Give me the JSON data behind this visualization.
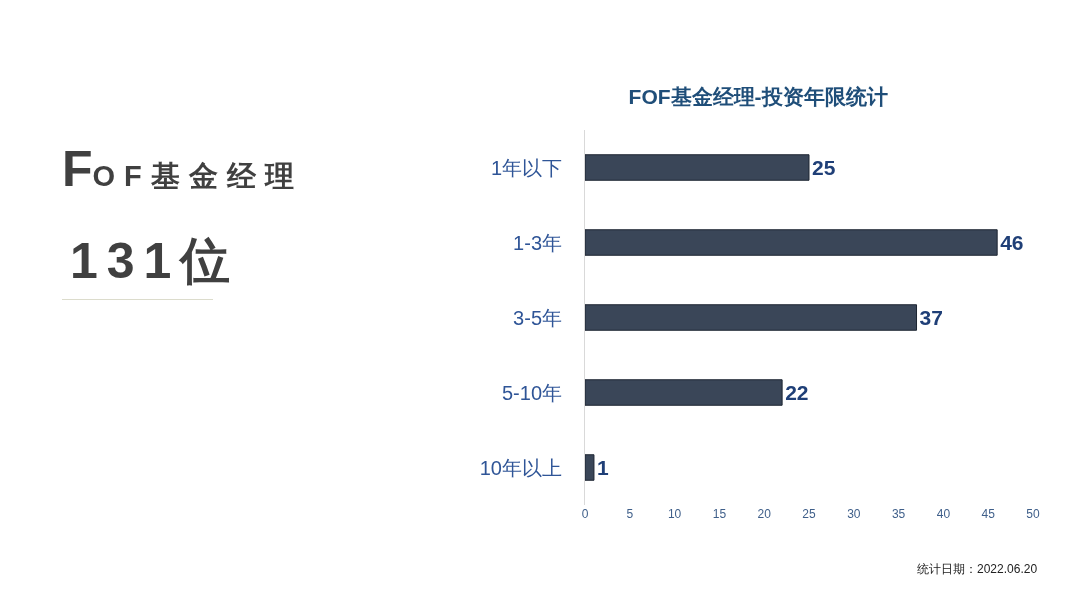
{
  "chart_data": [
    {
      "type": "other",
      "title": "FOF基金经理",
      "annotations": [
        "131位"
      ]
    },
    {
      "type": "bar",
      "orientation": "horizontal",
      "title": "FOF基金经理-投资年限统计",
      "categories": [
        "1年以下",
        "1-3年",
        "3-5年",
        "5-10年",
        "10年以上"
      ],
      "values": [
        25,
        46,
        37,
        22,
        1
      ],
      "color": "#3a4658",
      "xlim": [
        0,
        50
      ],
      "xticks": [
        0,
        5,
        10,
        15,
        20,
        25,
        30,
        35,
        40,
        45,
        50
      ],
      "data_labels": true,
      "grid": false,
      "annotations": [
        "统计日期：2022.06.20"
      ]
    }
  ]
}
